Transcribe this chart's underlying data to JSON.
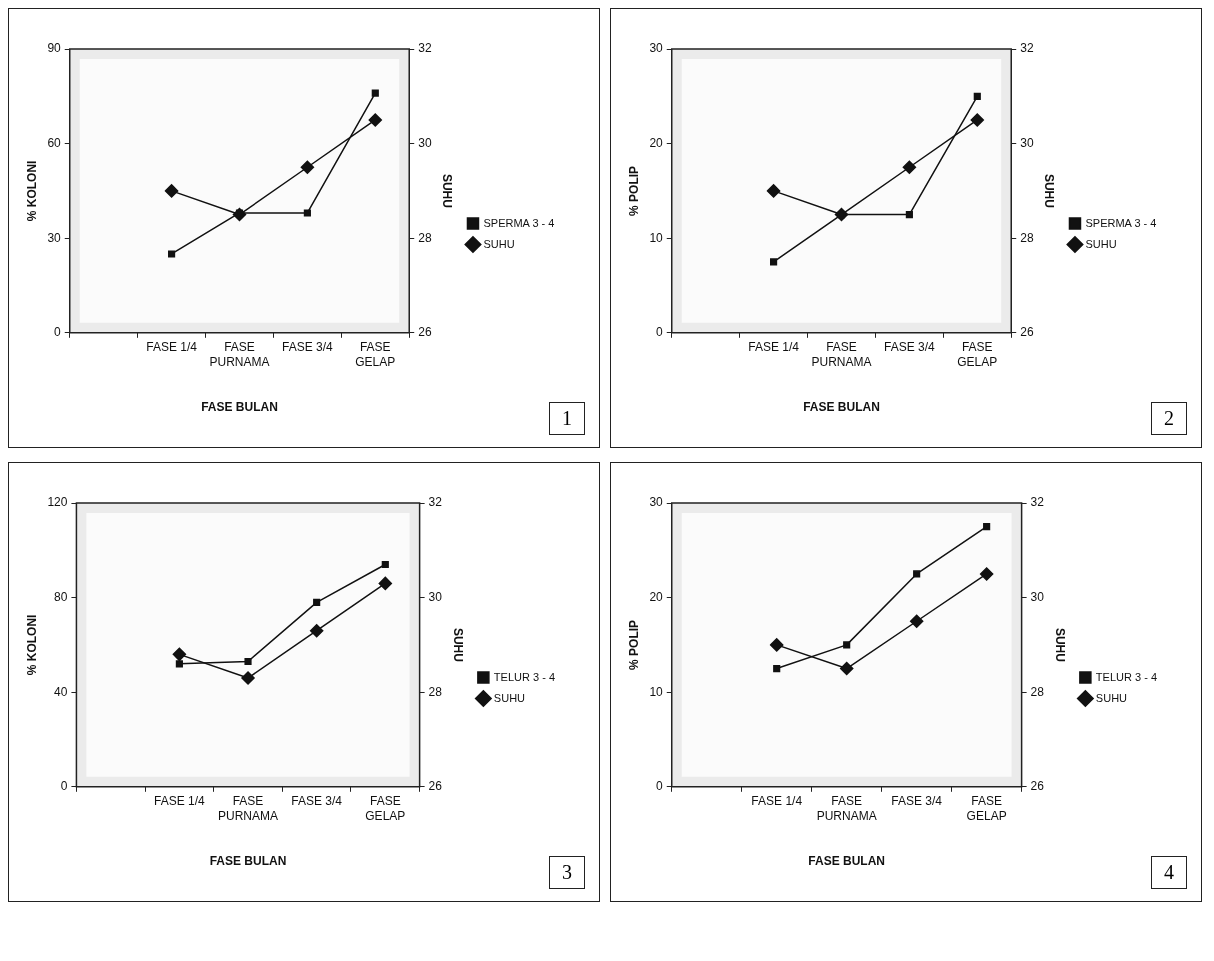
{
  "chart_data": [
    {
      "type": "line",
      "xlabel": "FASE BULAN",
      "ylabel": "% KOLONI",
      "y2label": "SUHU",
      "categories": [
        null,
        "FASE 1/4",
        "FASE PURNAMA",
        "FASE 3/4",
        "FASE GELAP"
      ],
      "series": [
        {
          "name": "SPERMA 3 - 4",
          "color": "#111111",
          "marker": "square",
          "values": [
            null,
            25,
            38,
            38,
            76
          ]
        },
        {
          "name": "SUHU",
          "color": "#111111",
          "marker": "diamond",
          "axis": "y2",
          "values": [
            null,
            29,
            28.5,
            29.5,
            30.5
          ]
        }
      ],
      "ylim": [
        0,
        90
      ],
      "yticks": [
        0,
        30,
        60,
        90
      ],
      "y2lim": [
        26,
        32
      ],
      "y2ticks": [
        26,
        28,
        30,
        32
      ],
      "legend": "right",
      "annotations": [
        "1"
      ]
    },
    {
      "type": "line",
      "xlabel": "FASE BULAN",
      "ylabel": "% POLIP",
      "y2label": "SUHU",
      "categories": [
        null,
        "FASE 1/4",
        "FASE PURNAMA",
        "FASE 3/4",
        "FASE GELAP"
      ],
      "series": [
        {
          "name": "SPERMA 3 - 4",
          "color": "#111111",
          "marker": "square",
          "values": [
            null,
            7.5,
            12.5,
            12.5,
            25
          ]
        },
        {
          "name": "SUHU",
          "color": "#111111",
          "marker": "diamond",
          "axis": "y2",
          "values": [
            null,
            29,
            28.5,
            29.5,
            30.5
          ]
        }
      ],
      "ylim": [
        0,
        30
      ],
      "yticks": [
        0,
        10,
        20,
        30
      ],
      "y2lim": [
        26,
        32
      ],
      "y2ticks": [
        26,
        28,
        30,
        32
      ],
      "legend": "right",
      "annotations": [
        "2"
      ]
    },
    {
      "type": "line",
      "xlabel": "FASE BULAN",
      "ylabel": "% KOLONI",
      "y2label": "SUHU",
      "categories": [
        null,
        "FASE 1/4",
        "FASE PURNAMA",
        "FASE 3/4",
        "FASE GELAP"
      ],
      "series": [
        {
          "name": "TELUR 3 - 4",
          "color": "#111111",
          "marker": "square",
          "values": [
            null,
            52,
            53,
            78,
            94
          ]
        },
        {
          "name": "SUHU",
          "color": "#111111",
          "marker": "diamond",
          "axis": "y2",
          "values": [
            null,
            28.8,
            28.3,
            29.3,
            30.3
          ]
        }
      ],
      "ylim": [
        0,
        120
      ],
      "yticks": [
        0,
        40,
        80,
        120
      ],
      "y2lim": [
        26,
        32
      ],
      "y2ticks": [
        26,
        28,
        30,
        32
      ],
      "legend": "right",
      "annotations": [
        "3"
      ]
    },
    {
      "type": "line",
      "xlabel": "FASE BULAN",
      "ylabel": "% POLIP",
      "y2label": "SUHU",
      "categories": [
        null,
        "FASE 1/4",
        "FASE PURNAMA",
        "FASE 3/4",
        "FASE GELAP"
      ],
      "series": [
        {
          "name": "TELUR 3 - 4",
          "color": "#111111",
          "marker": "square",
          "values": [
            null,
            12.5,
            15,
            22.5,
            27.5
          ]
        },
        {
          "name": "SUHU",
          "color": "#111111",
          "marker": "diamond",
          "axis": "y2",
          "values": [
            null,
            29,
            28.5,
            29.5,
            30.5
          ]
        }
      ],
      "ylim": [
        0,
        30
      ],
      "yticks": [
        0,
        10,
        20,
        30
      ],
      "y2lim": [
        26,
        32
      ],
      "y2ticks": [
        26,
        28,
        30,
        32
      ],
      "legend": "right",
      "annotations": [
        "4"
      ]
    }
  ]
}
